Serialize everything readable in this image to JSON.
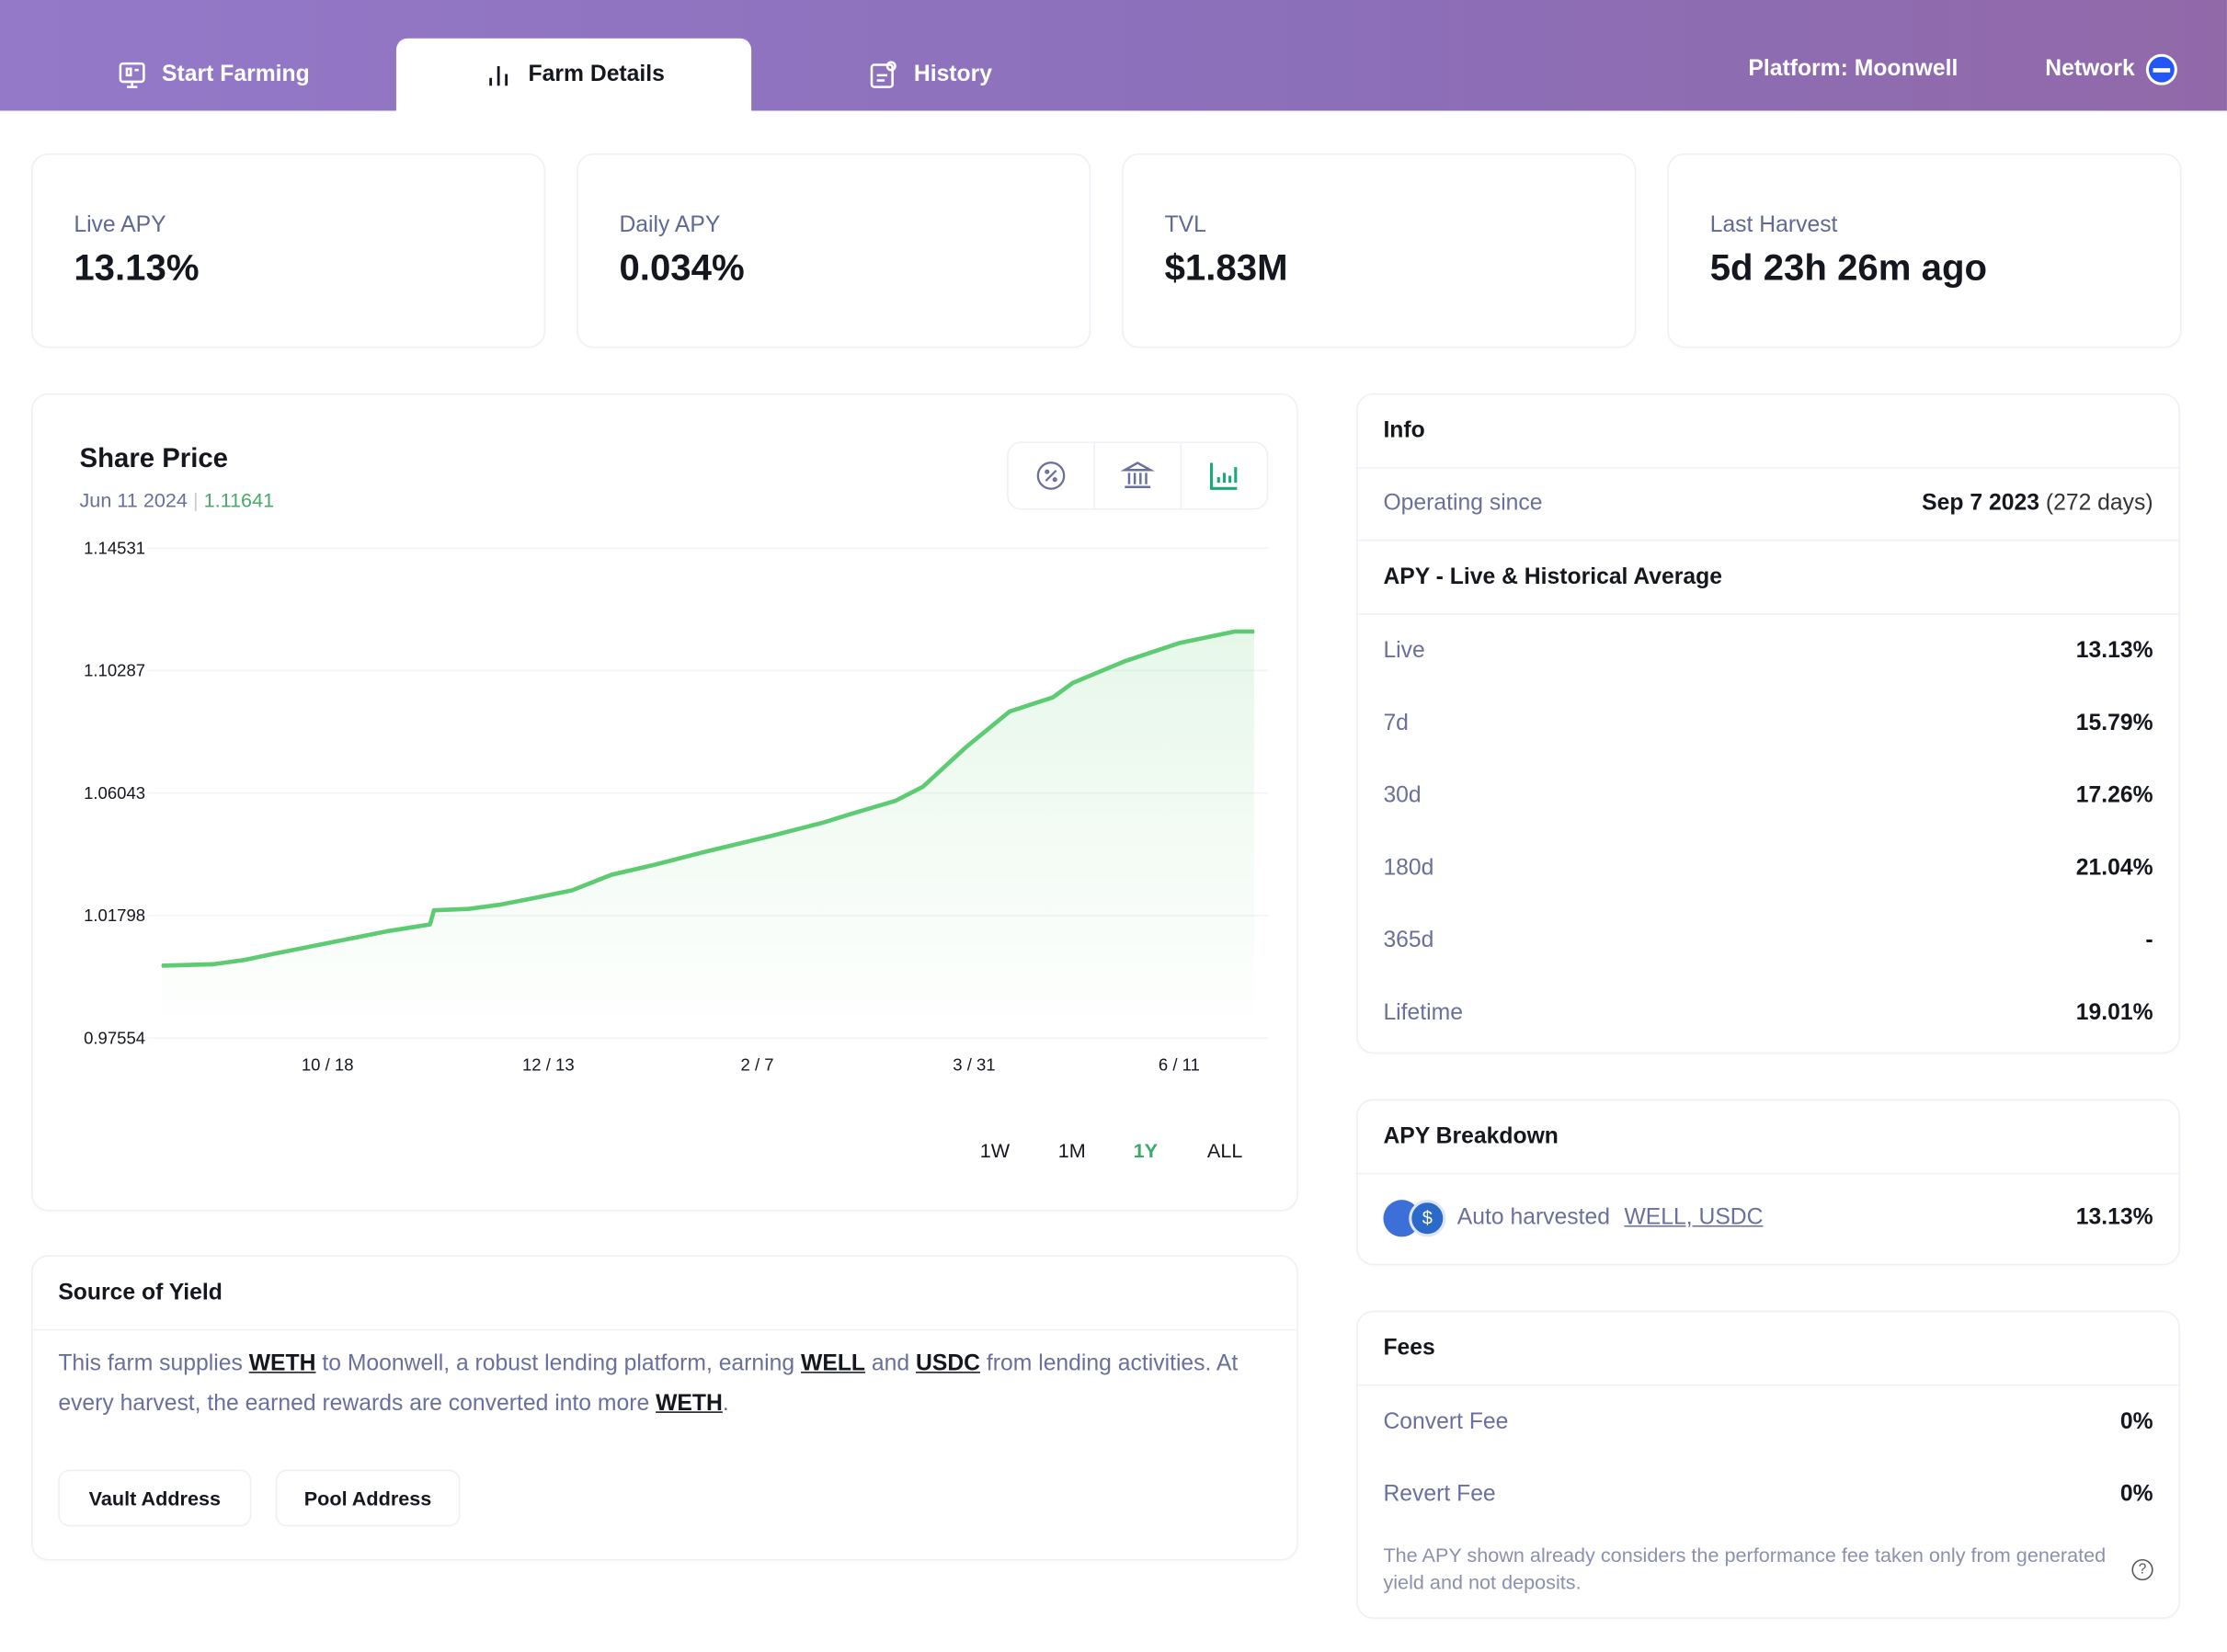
{
  "nav": {
    "tabs": [
      {
        "label": "Start Farming",
        "icon": "monitor-icon"
      },
      {
        "label": "Farm Details",
        "icon": "bar-chart-icon"
      },
      {
        "label": "History",
        "icon": "history-icon"
      }
    ],
    "platform": "Platform: Moonwell",
    "network": "Network"
  },
  "stats": [
    {
      "label": "Live APY",
      "value": "13.13%"
    },
    {
      "label": "Daily APY",
      "value": "0.034%"
    },
    {
      "label": "TVL",
      "value": "$1.83M"
    },
    {
      "label": "Last Harvest",
      "value": "5d 23h 26m ago"
    }
  ],
  "share_price": {
    "title": "Share Price",
    "date": "Jun 11 2024",
    "value": "1.11641",
    "ranges": [
      "1W",
      "1M",
      "1Y",
      "ALL"
    ],
    "active_range": "1Y"
  },
  "chart_data": {
    "type": "area",
    "title": "Share Price",
    "xlabel": "",
    "ylabel": "",
    "ylim": [
      0.97554,
      1.14531
    ],
    "yticks": [
      "1.14531",
      "1.10287",
      "1.06043",
      "1.01798",
      "0.97554"
    ],
    "xticks": [
      {
        "label": "10 / 18",
        "x": 42
      },
      {
        "label": "12 / 13",
        "x": 98
      },
      {
        "label": "2 / 7",
        "x": 151
      },
      {
        "label": "3 / 31",
        "x": 206
      },
      {
        "label": "6 / 11",
        "x": 258
      }
    ],
    "xlim": [
      0,
      277
    ],
    "line_color": "#5ccb72",
    "x": [
      0,
      13,
      21,
      28,
      46,
      57,
      68,
      69,
      78,
      86,
      95,
      104,
      114,
      125,
      139,
      154,
      168,
      175,
      186,
      193,
      204,
      215,
      226,
      231,
      244,
      258,
      272,
      277
    ],
    "y": [
      1.0006,
      1.0011,
      1.0026,
      1.0046,
      1.0095,
      1.0125,
      1.0149,
      1.0198,
      1.0203,
      1.0218,
      1.0242,
      1.0267,
      1.0321,
      1.0356,
      1.0405,
      1.0454,
      1.0503,
      1.0533,
      1.0577,
      1.0626,
      1.0764,
      1.0887,
      1.0936,
      1.0986,
      1.106,
      1.1124,
      1.1164,
      1.1164
    ]
  },
  "source": {
    "title": "Source of Yield",
    "p1": "This farm supplies ",
    "t1": "WETH",
    "p2": " to Moonwell, a robust lending platform, earning ",
    "t2": "WELL",
    "p3": " and ",
    "t3": "USDC",
    "p4": " from lending activities. At every harvest, the earned rewards are converted into more ",
    "t4": "WETH",
    "p5": ".",
    "vault": "Vault Address",
    "pool": "Pool Address"
  },
  "info": {
    "title": "Info",
    "operating_label": "Operating since",
    "operating_date": "Sep 7 2023",
    "operating_days": "(272 days)",
    "apy_title": "APY - Live & Historical Average",
    "apy": [
      {
        "k": "Live",
        "v": "13.13%"
      },
      {
        "k": "7d",
        "v": "15.79%"
      },
      {
        "k": "30d",
        "v": "17.26%"
      },
      {
        "k": "180d",
        "v": "21.04%"
      },
      {
        "k": "365d",
        "v": "-"
      },
      {
        "k": "Lifetime",
        "v": "19.01%"
      }
    ]
  },
  "breakdown": {
    "title": "APY Breakdown",
    "label": "Auto harvested",
    "tokens": "WELL, USDC",
    "value": "13.13%"
  },
  "fees": {
    "title": "Fees",
    "rows": [
      {
        "k": "Convert Fee",
        "v": "0%"
      },
      {
        "k": "Revert Fee",
        "v": "0%"
      }
    ],
    "note": "The APY shown already considers the performance fee taken only from generated yield and not deposits."
  }
}
